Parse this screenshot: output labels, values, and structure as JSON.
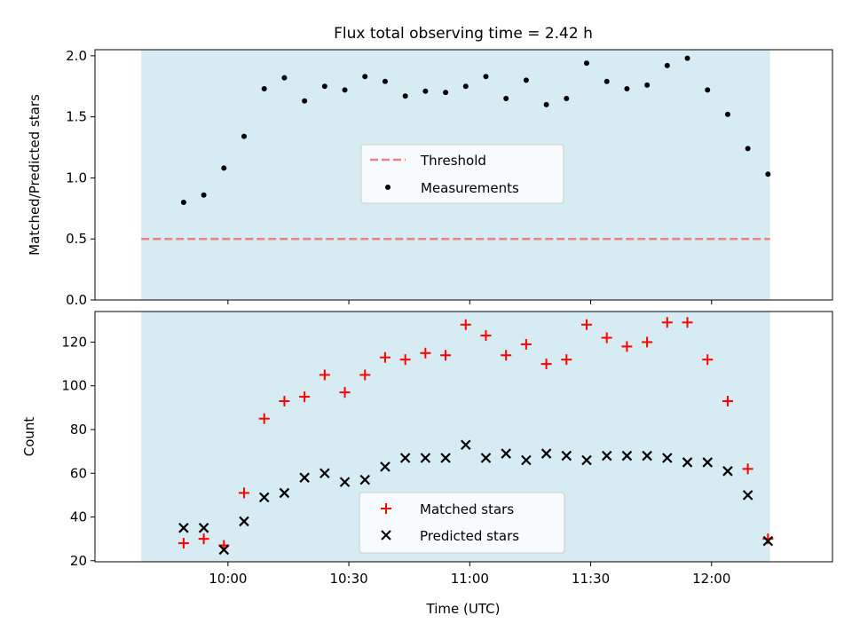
{
  "figure": {
    "title": "Flux total observing time = 2.42 h",
    "xlabel": "Time (UTC)"
  },
  "colors": {
    "shade": "#add8e6",
    "threshold": "#f08080",
    "measurement": "#000000",
    "matched": "#ff0000",
    "predicted": "#000000"
  },
  "chart_data": [
    {
      "type": "scatter",
      "ylabel": "Matched/Predicted stars",
      "ylim": [
        0,
        2.05
      ],
      "yticks": [
        0.0,
        0.5,
        1.0,
        1.5,
        2.0
      ],
      "ytick_labels": [
        "0.0",
        "0.5",
        "1.0",
        "1.5",
        "2.0"
      ],
      "xlim_minutes": [
        567,
        750
      ],
      "shaded_span_minutes": [
        578.5,
        734.5
      ],
      "x_times": [
        "09:49",
        "09:54",
        "09:59",
        "10:04",
        "10:09",
        "10:14",
        "10:19",
        "10:24",
        "10:29",
        "10:34",
        "10:39",
        "10:44",
        "10:49",
        "10:54",
        "10:59",
        "11:04",
        "11:09",
        "11:14",
        "11:19",
        "11:24",
        "11:29",
        "11:34",
        "11:39",
        "11:44",
        "11:49",
        "11:54",
        "11:59",
        "12:04",
        "12:09",
        "12:14"
      ],
      "threshold": 0.5,
      "series": [
        {
          "name": "Measurements",
          "values": [
            0.8,
            0.86,
            1.08,
            1.34,
            1.73,
            1.82,
            1.63,
            1.75,
            1.72,
            1.83,
            1.79,
            1.67,
            1.71,
            1.7,
            1.75,
            1.83,
            1.65,
            1.8,
            1.6,
            1.65,
            1.94,
            1.79,
            1.73,
            1.76,
            1.92,
            1.98,
            1.72,
            1.52,
            1.24,
            1.03
          ]
        }
      ],
      "legend": {
        "position": "center",
        "entries": [
          "Threshold",
          "Measurements"
        ]
      },
      "grid": false
    },
    {
      "type": "scatter",
      "ylabel": "Count",
      "ylim": [
        19.5,
        134
      ],
      "yticks": [
        20,
        40,
        60,
        80,
        100,
        120
      ],
      "ytick_labels": [
        "20",
        "40",
        "60",
        "80",
        "100",
        "120"
      ],
      "xlim_minutes": [
        567,
        750
      ],
      "shaded_span_minutes": [
        578.5,
        734.5
      ],
      "x_ticks_minutes": [
        600,
        630,
        660,
        690,
        720
      ],
      "x_tick_labels": [
        "10:00",
        "10:30",
        "11:00",
        "11:30",
        "12:00"
      ],
      "x_times": [
        "09:49",
        "09:54",
        "09:59",
        "10:04",
        "10:09",
        "10:14",
        "10:19",
        "10:24",
        "10:29",
        "10:34",
        "10:39",
        "10:44",
        "10:49",
        "10:54",
        "10:59",
        "11:04",
        "11:09",
        "11:14",
        "11:19",
        "11:24",
        "11:29",
        "11:34",
        "11:39",
        "11:44",
        "11:49",
        "11:54",
        "11:59",
        "12:04",
        "12:09",
        "12:14"
      ],
      "series": [
        {
          "name": "Matched stars",
          "marker": "plus",
          "values": [
            28,
            30,
            27,
            51,
            85,
            93,
            95,
            105,
            97,
            105,
            113,
            112,
            115,
            114,
            128,
            123,
            114,
            119,
            110,
            112,
            128,
            122,
            118,
            120,
            129,
            129,
            112,
            93,
            62,
            30
          ]
        },
        {
          "name": "Predicted stars",
          "marker": "x",
          "values": [
            35,
            35,
            25,
            38,
            49,
            51,
            58,
            60,
            56,
            57,
            63,
            67,
            67,
            67,
            73,
            67,
            69,
            66,
            69,
            68,
            66,
            68,
            68,
            68,
            67,
            65,
            65,
            61,
            50,
            29
          ]
        }
      ],
      "legend": {
        "position": "lower center",
        "entries": [
          "Matched stars",
          "Predicted stars"
        ]
      },
      "grid": false
    }
  ]
}
